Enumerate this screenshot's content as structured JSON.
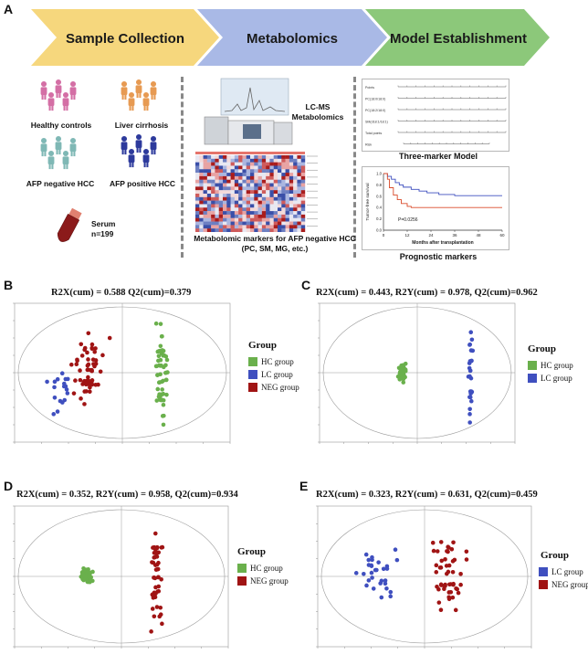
{
  "panel_letters": {
    "A": "A",
    "B": "B",
    "C": "C",
    "D": "D",
    "E": "E"
  },
  "steps": [
    "Sample Collection",
    "Metabolomics",
    "Model Establishment"
  ],
  "colors": {
    "hc": "#6ab04c",
    "lc": "#3f4fbf",
    "neg": "#a01414",
    "step1": "#f6d77d",
    "step2": "#a9b9e6",
    "step3": "#8cc87a"
  },
  "collection": {
    "healthy": "Healthy controls",
    "cirrhosis": "Liver cirrhosis",
    "afp_neg": "AFP negative HCC",
    "afp_pos": "AFP positive HCC",
    "serum": "Serum",
    "n": "n=199"
  },
  "metabolomics": {
    "lcms": "LC-MS",
    "lcms2": "Metabolomics",
    "markers": "Metabolomic markers for AFP negative HCC (PC, SM, MG, etc.)"
  },
  "model": {
    "nomogram_title": "Three-marker Model",
    "nomogram_rows": [
      "Points",
      "PC(18:0/18:0)",
      "PC(18:2/18:0)",
      "SM(d18:1/18:1)",
      "Total points",
      "Risk"
    ],
    "km_ylabel": "Tumor-free survival",
    "km_xlabel": "Months after transplantation",
    "km_p": "P=0.0256",
    "km_xticks": [
      "0",
      "12",
      "24",
      "36",
      "48",
      "60"
    ],
    "km_yticks": [
      "1.0",
      "0.8",
      "0.6",
      "0.4",
      "0.2",
      "0.0"
    ],
    "prognostic": "Prognostic markers"
  },
  "plots": {
    "B": {
      "stats": "R2X(cum) = 0.588 Q2(cum)=0.379",
      "legend_title": "Group",
      "legend": [
        "HC group",
        "LC group",
        "NEG group"
      ]
    },
    "C": {
      "stats": "R2X(cum) = 0.443, R2Y(cum) = 0.978, Q2(cum)=0.962",
      "legend_title": "Group",
      "legend": [
        "HC group",
        "LC group"
      ]
    },
    "D": {
      "stats": "R2X(cum) = 0.352, R2Y(cum) = 0.958, Q2(cum)=0.934",
      "legend_title": "Group",
      "legend": [
        "HC group",
        "NEG group"
      ]
    },
    "E": {
      "stats": "R2X(cum) = 0.323, R2Y(cum) = 0.631, Q2(cum)=0.459",
      "legend_title": "Group",
      "legend": [
        "LC group",
        "NEG group"
      ]
    }
  }
}
